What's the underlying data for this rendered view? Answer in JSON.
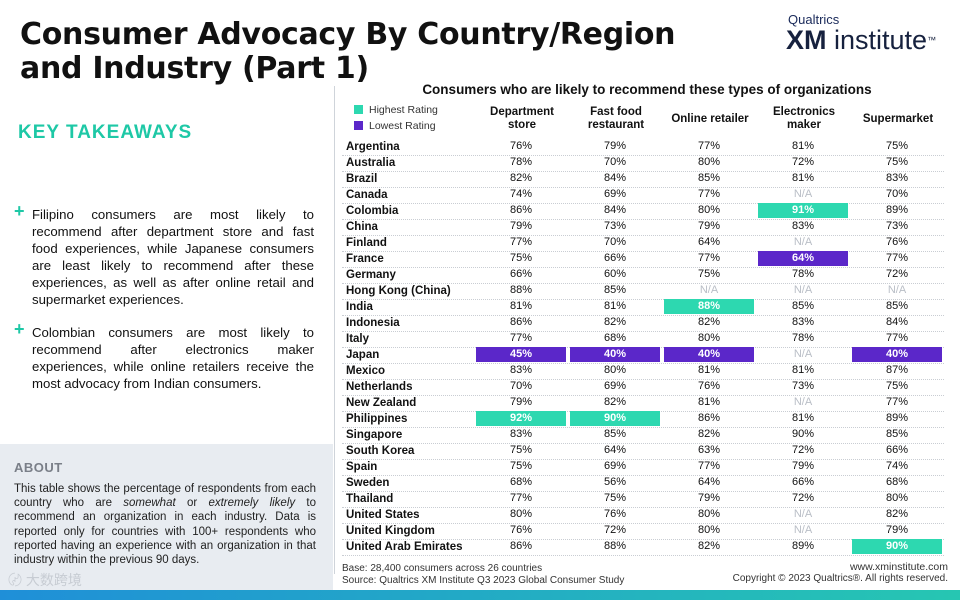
{
  "page": {
    "title": "Consumer Advocacy By Country/Region and Industry (Part 1)",
    "logo_top": "Qualtrics",
    "logo_xm": "XM",
    "logo_inst": "institute",
    "logo_tm": "™",
    "takeaways_title": "KEY TAKEAWAYS",
    "bullet_symbol": "+",
    "bullets": [
      "Filipino consumers are most likely to recommend after department store and fast food experiences, while Japanese consumers are least likely to recommend after these experiences, as well as after online retail and supermarket experiences.",
      "Colombian consumers are most likely to recommend after electronics maker experiences, while online retailers receive the most advocacy from Indian consumers."
    ],
    "about_title": "ABOUT",
    "about_parts": [
      "This table shows the percentage of respondents from each country who are ",
      "somewhat",
      " or ",
      "extremely likely",
      " to recommend an organization in each industry. Data is reported only for countries with 100+ respondents who reported having an experience with an organization in that industry within the previous 90 days."
    ],
    "footer_base": "Base: 28,400 consumers across 26 countries",
    "footer_source": "Source: Qualtrics XM Institute Q3 2023 Global Consumer Study",
    "footer_site": "www.xminstitute.com",
    "footer_copyright": "Copyright © 2023 Qualtrics®. All rights reserved.",
    "watermark": "〄 大数跨境",
    "colors": {
      "accent": "#1ec8a6",
      "highest": "#2dd8b0",
      "lowest": "#5b27c9",
      "na_text": "#b9bec6"
    }
  },
  "chart_data": {
    "type": "table",
    "title": "Consumers who are likely to recommend these types of organizations",
    "legend": [
      "Highest Rating",
      "Lowest Rating"
    ],
    "columns": [
      "Department store",
      "Fast food restaurant",
      "Online retailer",
      "Electronics maker",
      "Supermarket"
    ],
    "rows": [
      {
        "country": "Argentina",
        "values": [
          "76%",
          "79%",
          "77%",
          "81%",
          "75%"
        ]
      },
      {
        "country": "Australia",
        "values": [
          "78%",
          "70%",
          "80%",
          "72%",
          "75%"
        ]
      },
      {
        "country": "Brazil",
        "values": [
          "82%",
          "84%",
          "85%",
          "81%",
          "83%"
        ]
      },
      {
        "country": "Canada",
        "values": [
          "74%",
          "69%",
          "77%",
          "N/A",
          "70%"
        ]
      },
      {
        "country": "Colombia",
        "values": [
          "86%",
          "84%",
          "80%",
          "91%",
          "89%"
        ],
        "highlight": [
          null,
          null,
          null,
          "high",
          null
        ]
      },
      {
        "country": "China",
        "values": [
          "79%",
          "73%",
          "79%",
          "83%",
          "73%"
        ]
      },
      {
        "country": "Finland",
        "values": [
          "77%",
          "70%",
          "64%",
          "N/A",
          "76%"
        ]
      },
      {
        "country": "France",
        "values": [
          "75%",
          "66%",
          "77%",
          "64%",
          "77%"
        ],
        "highlight": [
          null,
          null,
          null,
          "low",
          null
        ]
      },
      {
        "country": "Germany",
        "values": [
          "66%",
          "60%",
          "75%",
          "78%",
          "72%"
        ]
      },
      {
        "country": "Hong Kong (China)",
        "values": [
          "88%",
          "85%",
          "N/A",
          "N/A",
          "N/A"
        ]
      },
      {
        "country": "India",
        "values": [
          "81%",
          "81%",
          "88%",
          "85%",
          "85%"
        ],
        "highlight": [
          null,
          null,
          "high",
          null,
          null
        ]
      },
      {
        "country": "Indonesia",
        "values": [
          "86%",
          "82%",
          "82%",
          "83%",
          "84%"
        ]
      },
      {
        "country": "Italy",
        "values": [
          "77%",
          "68%",
          "80%",
          "78%",
          "77%"
        ]
      },
      {
        "country": "Japan",
        "values": [
          "45%",
          "40%",
          "40%",
          "N/A",
          "40%"
        ],
        "highlight": [
          "low",
          "low",
          "low",
          null,
          "low"
        ]
      },
      {
        "country": "Mexico",
        "values": [
          "83%",
          "80%",
          "81%",
          "81%",
          "87%"
        ]
      },
      {
        "country": "Netherlands",
        "values": [
          "70%",
          "69%",
          "76%",
          "73%",
          "75%"
        ]
      },
      {
        "country": "New Zealand",
        "values": [
          "79%",
          "82%",
          "81%",
          "N/A",
          "77%"
        ]
      },
      {
        "country": "Philippines",
        "values": [
          "92%",
          "90%",
          "86%",
          "81%",
          "89%"
        ],
        "highlight": [
          "high",
          "high",
          null,
          null,
          null
        ]
      },
      {
        "country": "Singapore",
        "values": [
          "83%",
          "85%",
          "82%",
          "90%",
          "85%"
        ]
      },
      {
        "country": "South Korea",
        "values": [
          "75%",
          "64%",
          "63%",
          "72%",
          "66%"
        ]
      },
      {
        "country": "Spain",
        "values": [
          "75%",
          "69%",
          "77%",
          "79%",
          "74%"
        ]
      },
      {
        "country": "Sweden",
        "values": [
          "68%",
          "56%",
          "64%",
          "66%",
          "68%"
        ]
      },
      {
        "country": "Thailand",
        "values": [
          "77%",
          "75%",
          "79%",
          "72%",
          "80%"
        ]
      },
      {
        "country": "United States",
        "values": [
          "80%",
          "76%",
          "80%",
          "N/A",
          "82%"
        ]
      },
      {
        "country": "United Kingdom",
        "values": [
          "76%",
          "72%",
          "80%",
          "N/A",
          "79%"
        ]
      },
      {
        "country": "United Arab Emirates",
        "values": [
          "86%",
          "88%",
          "82%",
          "89%",
          "90%"
        ],
        "highlight": [
          null,
          null,
          null,
          null,
          "high"
        ]
      }
    ]
  }
}
